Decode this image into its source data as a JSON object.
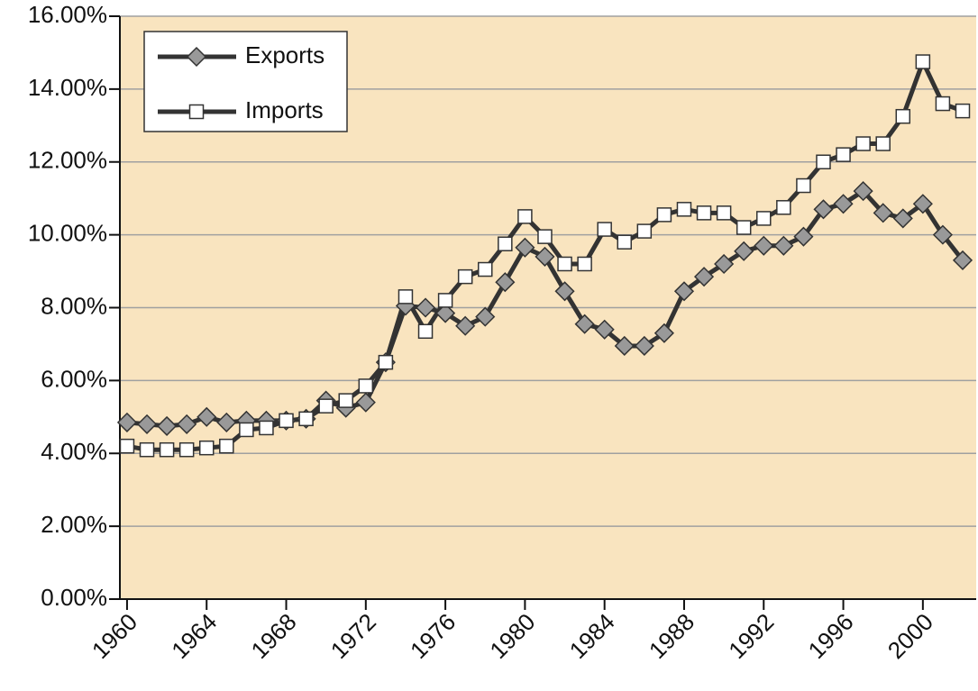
{
  "chart_data": {
    "type": "line",
    "x": [
      1960,
      1961,
      1962,
      1963,
      1964,
      1965,
      1966,
      1967,
      1968,
      1969,
      1970,
      1971,
      1972,
      1973,
      1974,
      1975,
      1976,
      1977,
      1978,
      1979,
      1980,
      1981,
      1982,
      1983,
      1984,
      1985,
      1986,
      1987,
      1988,
      1989,
      1990,
      1991,
      1992,
      1993,
      1994,
      1995,
      1996,
      1997,
      1998,
      1999,
      2000,
      2001,
      2002
    ],
    "series": [
      {
        "name": "Exports",
        "color": "#999999",
        "marker": "diamond",
        "values": [
          4.85,
          4.8,
          4.75,
          4.8,
          5.0,
          4.85,
          4.9,
          4.9,
          4.9,
          4.95,
          5.45,
          5.25,
          5.4,
          6.5,
          8.05,
          8.0,
          7.85,
          7.5,
          7.75,
          8.7,
          9.65,
          9.4,
          8.45,
          7.55,
          7.4,
          6.95,
          6.95,
          7.3,
          8.45,
          8.85,
          9.2,
          9.55,
          9.7,
          9.7,
          9.95,
          10.7,
          10.85,
          11.2,
          10.6,
          10.45,
          10.85,
          10.0,
          9.3
        ]
      },
      {
        "name": "Imports",
        "color": "#ffffff",
        "marker": "square",
        "values": [
          4.2,
          4.1,
          4.1,
          4.1,
          4.15,
          4.2,
          4.65,
          4.7,
          4.9,
          4.95,
          5.3,
          5.45,
          5.85,
          6.5,
          8.3,
          7.35,
          8.2,
          8.85,
          9.05,
          9.75,
          10.5,
          9.95,
          9.2,
          9.2,
          10.15,
          9.8,
          10.1,
          10.55,
          10.7,
          10.6,
          10.6,
          10.2,
          10.45,
          10.75,
          11.35,
          12.0,
          12.2,
          12.5,
          12.5,
          13.25,
          14.75,
          13.6,
          13.4
        ]
      }
    ],
    "xlim": [
      1959.64,
      2002.68
    ],
    "xticks": [
      1960,
      1964,
      1968,
      1972,
      1976,
      1980,
      1984,
      1988,
      1992,
      1996,
      2000
    ],
    "ylim": [
      0,
      16
    ],
    "yticks": [
      {
        "value": 0,
        "label": "0.00%"
      },
      {
        "value": 2,
        "label": "2.00%"
      },
      {
        "value": 4,
        "label": "4.00%"
      },
      {
        "value": 6,
        "label": "6.00%"
      },
      {
        "value": 8,
        "label": "8.00%"
      },
      {
        "value": 10,
        "label": "10.00%"
      },
      {
        "value": 12,
        "label": "12.00%"
      },
      {
        "value": 14,
        "label": "14.00%"
      },
      {
        "value": 16,
        "label": "16.00%"
      }
    ],
    "grid": true,
    "legend": "upper left"
  }
}
